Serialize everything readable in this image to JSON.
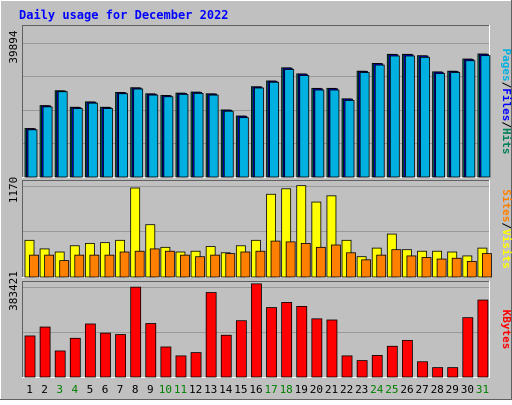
{
  "colors": {
    "background": "#c0c0c0",
    "panel": "#c0c0c0",
    "grid": "#999999",
    "title": "#0000ff",
    "hits": "#00805c",
    "files": "#0000ff",
    "pages": "#00b0e0",
    "visits": "#ffff00",
    "sites": "#ff8000",
    "kbytes": "#ff0000",
    "weekend_day": "#008000",
    "weekday": "#000000"
  },
  "chart_data": [
    {
      "type": "bar",
      "panel": "hits-files-pages",
      "title": "Daily usage for December 2022",
      "categories": [
        "1",
        "2",
        "3",
        "4",
        "5",
        "6",
        "7",
        "8",
        "9",
        "10",
        "11",
        "12",
        "13",
        "14",
        "15",
        "16",
        "17",
        "18",
        "19",
        "20",
        "21",
        "22",
        "23",
        "24",
        "25",
        "26",
        "27",
        "28",
        "29",
        "30",
        "31"
      ],
      "weekend_days": [
        "3",
        "4",
        "10",
        "11",
        "17",
        "18",
        "24",
        "25",
        "31"
      ],
      "ytick": "39894",
      "ytick_value": 39894,
      "ylim": [
        0,
        44800
      ],
      "right_label": [
        "Pages",
        "/",
        "Files",
        "/",
        "Hits"
      ],
      "series": [
        {
          "name": "Hits",
          "color_key": "hits",
          "values": [
            14400,
            21200,
            25600,
            20700,
            22300,
            20700,
            25100,
            26500,
            24700,
            24200,
            24900,
            25200,
            24700,
            19900,
            18100,
            26800,
            28500,
            32400,
            30600,
            26300,
            26300,
            23200,
            31400,
            33700,
            36400,
            36400,
            36000,
            31200,
            31400,
            35000,
            36500
          ]
        },
        {
          "name": "Files",
          "color_key": "files",
          "values": [
            14300,
            21100,
            25500,
            20600,
            22200,
            20600,
            25000,
            26400,
            24600,
            24100,
            24800,
            25100,
            24600,
            19800,
            18000,
            26700,
            28400,
            32300,
            30500,
            26200,
            26200,
            23100,
            31300,
            33600,
            36300,
            36300,
            35900,
            31100,
            31300,
            34900,
            36400
          ]
        },
        {
          "name": "Pages",
          "color_key": "pages",
          "values": [
            14000,
            20800,
            25300,
            20300,
            21900,
            20300,
            24700,
            26100,
            24300,
            23800,
            24500,
            24800,
            24300,
            19500,
            17600,
            26400,
            28100,
            31900,
            30100,
            25800,
            25800,
            22700,
            31000,
            33200,
            35900,
            35900,
            35500,
            30700,
            31000,
            34500,
            36000
          ]
        }
      ]
    },
    {
      "type": "bar",
      "panel": "visits-sites",
      "categories": [
        "1",
        "2",
        "3",
        "4",
        "5",
        "6",
        "7",
        "8",
        "9",
        "10",
        "11",
        "12",
        "13",
        "14",
        "15",
        "16",
        "17",
        "18",
        "19",
        "20",
        "21",
        "22",
        "23",
        "24",
        "25",
        "26",
        "27",
        "28",
        "29",
        "30",
        "31"
      ],
      "ytick": "1170",
      "ytick_value": 1170,
      "ylim": [
        0,
        1230
      ],
      "right_label": [
        "Sites",
        "/",
        "Visits"
      ],
      "series": [
        {
          "name": "Visits",
          "color_key": "visits",
          "values": [
            470,
            360,
            320,
            400,
            430,
            440,
            470,
            1140,
            670,
            380,
            320,
            330,
            390,
            310,
            400,
            470,
            1060,
            1130,
            1170,
            960,
            1040,
            470,
            260,
            370,
            550,
            350,
            330,
            330,
            320,
            270,
            370
          ]
        },
        {
          "name": "Sites",
          "color_key": "sites",
          "values": [
            280,
            280,
            210,
            280,
            280,
            280,
            320,
            330,
            360,
            330,
            280,
            260,
            280,
            300,
            320,
            330,
            460,
            450,
            430,
            380,
            410,
            310,
            220,
            280,
            350,
            270,
            250,
            230,
            240,
            200,
            300
          ]
        }
      ]
    },
    {
      "type": "bar",
      "panel": "kbytes",
      "categories": [
        "1",
        "2",
        "3",
        "4",
        "5",
        "6",
        "7",
        "8",
        "9",
        "10",
        "11",
        "12",
        "13",
        "14",
        "15",
        "16",
        "17",
        "18",
        "19",
        "20",
        "21",
        "22",
        "23",
        "24",
        "25",
        "26",
        "27",
        "28",
        "29",
        "30",
        "31"
      ],
      "ytick": "383421",
      "ytick_value": 383421,
      "ylim": [
        0,
        405000
      ],
      "right_label": [
        "KBytes"
      ],
      "series": [
        {
          "name": "KBytes",
          "color_key": "kbytes",
          "values": [
            175000,
            213000,
            111000,
            165000,
            226000,
            187000,
            181000,
            383000,
            228000,
            128000,
            90000,
            104000,
            360000,
            178000,
            240000,
            397000,
            296000,
            318000,
            301000,
            248000,
            243000,
            90000,
            70000,
            92000,
            131000,
            156000,
            65000,
            40000,
            40000,
            253000,
            328000
          ]
        }
      ]
    }
  ]
}
